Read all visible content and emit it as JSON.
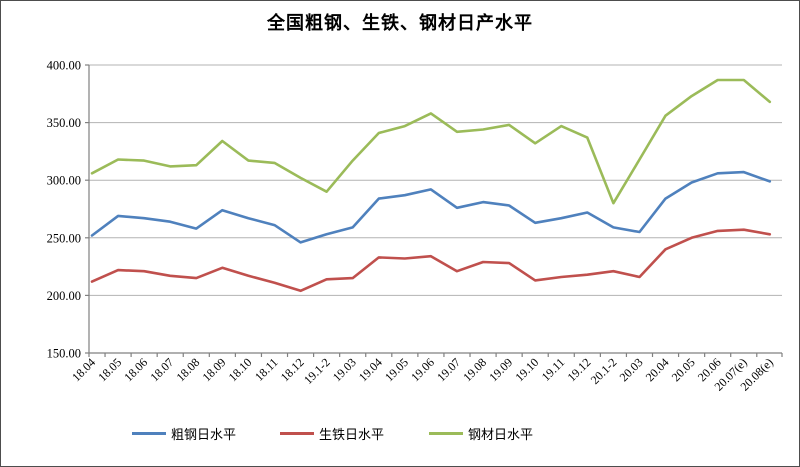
{
  "figure": {
    "title": "全国粗钢、生铁、钢材日产水平"
  },
  "chart_data": {
    "type": "line",
    "title": "全国粗钢、生铁、钢材日产水平",
    "categories": [
      "18.04",
      "18.05",
      "18.06",
      "18.07",
      "18.08",
      "18.09",
      "18.10",
      "18.11",
      "18.12",
      "19.1-2",
      "19.03",
      "19.04",
      "19.05",
      "19.06",
      "19.07",
      "19.08",
      "19.09",
      "19.10",
      "19.11",
      "19.12",
      "20.1-2",
      "20.03",
      "20.04",
      "20.05",
      "20.06",
      "20.07(e)",
      "20.08(e)"
    ],
    "series": [
      {
        "name": "粗钢日水平",
        "color": "#4F81BD",
        "values": [
          252,
          269,
          267,
          264,
          258,
          274,
          267,
          261,
          246,
          253,
          259,
          284,
          287,
          292,
          276,
          281,
          278,
          263,
          267,
          272,
          259,
          255,
          284,
          298,
          306,
          307,
          299
        ]
      },
      {
        "name": "生铁日水平",
        "color": "#C0504D",
        "values": [
          212,
          222,
          221,
          217,
          215,
          224,
          217,
          211,
          204,
          214,
          215,
          233,
          232,
          234,
          221,
          229,
          228,
          213,
          216,
          218,
          221,
          216,
          240,
          250,
          256,
          257,
          253
        ]
      },
      {
        "name": "钢材日水平",
        "color": "#9BBB59",
        "values": [
          306,
          318,
          317,
          312,
          313,
          334,
          317,
          315,
          302,
          290,
          317,
          341,
          347,
          358,
          342,
          344,
          348,
          332,
          347,
          337,
          280,
          318,
          356,
          373,
          387,
          387,
          368
        ]
      }
    ],
    "ylim": [
      150,
      400
    ],
    "ytick_step": 50,
    "ytick_labels": [
      "150.00",
      "200.00",
      "250.00",
      "300.00",
      "350.00",
      "400.00"
    ],
    "grid": "horizontal",
    "legend_position": "bottom",
    "x_label_rotation": 45
  },
  "colors": {
    "gridline": "#b3b3b3",
    "axis": "#808080",
    "label_text": "#000000",
    "background": "#ffffff"
  }
}
